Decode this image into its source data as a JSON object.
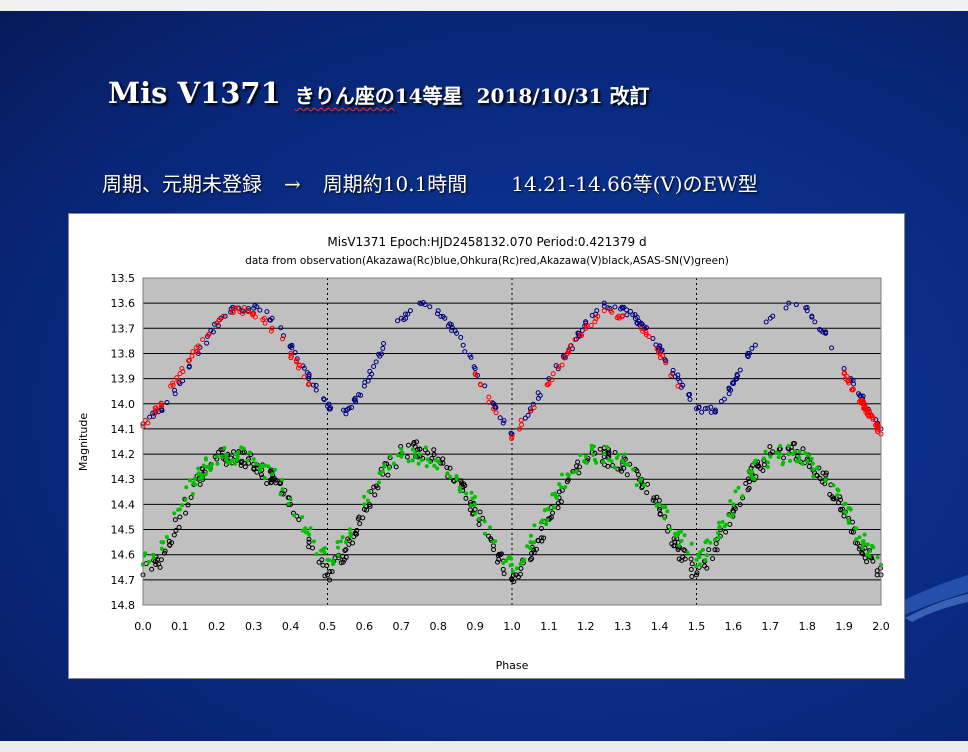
{
  "slide": {
    "title_main": "Mis V1371",
    "title_sub1": "きりん座の",
    "title_sub2": "14等星",
    "title_date": "2018/10/31 改訂",
    "subtitle_part1": "周期、元期未登録",
    "subtitle_arrow": "→",
    "subtitle_part2": "周期約10.1時間",
    "subtitle_part3": "14.21-14.66等(V)のEW型",
    "colors": {
      "background": "#0a2f8a",
      "text": "#ffffff"
    }
  },
  "chart_data": {
    "type": "scatter",
    "title": "MisV1371   Epoch:HJD2458132.070   Period:0.421379 d",
    "subtitle": "data from observation(Akazawa(Rc)blue,Ohkura(Rc)red,Akazawa(V)black,ASAS-SN(V)green)",
    "xlabel": "Phase",
    "ylabel": "Magnitude",
    "xlim": [
      0.0,
      2.0
    ],
    "ylim": [
      13.5,
      14.8
    ],
    "y_inverted": true,
    "grid": true,
    "vertical_dotted_lines": [
      0.5,
      1.0,
      1.5
    ],
    "x_ticks": [
      "0.0",
      "0.1",
      "0.2",
      "0.3",
      "0.4",
      "0.5",
      "0.6",
      "0.7",
      "0.8",
      "0.9",
      "1.0",
      "1.1",
      "1.2",
      "1.3",
      "1.4",
      "1.5",
      "1.6",
      "1.7",
      "1.8",
      "1.9",
      "2.0"
    ],
    "y_ticks": [
      "13.5",
      "13.6",
      "13.7",
      "13.8",
      "13.9",
      "14.0",
      "14.1",
      "14.2",
      "14.3",
      "14.4",
      "14.5",
      "14.6",
      "14.7",
      "14.8"
    ],
    "plot_background": "#c0c0c0",
    "series": [
      {
        "name": "Akazawa(Rc)",
        "color": "#00007f",
        "marker": "open-circle",
        "x": [
          0.0,
          0.05,
          0.1,
          0.15,
          0.2,
          0.25,
          0.3,
          0.35,
          0.4,
          0.45,
          0.5,
          0.55,
          0.6,
          0.65,
          0.7,
          0.75,
          0.8,
          0.85,
          0.9,
          0.95,
          1.0,
          1.05,
          1.1,
          1.15,
          1.2,
          1.25,
          1.3,
          1.35,
          1.4,
          1.45,
          1.5,
          1.55,
          1.6,
          1.65,
          1.7,
          1.75,
          1.8,
          1.85,
          1.9,
          1.95,
          2.0
        ],
        "y": [
          14.08,
          14.02,
          13.92,
          13.8,
          13.68,
          13.62,
          13.62,
          13.66,
          13.77,
          13.89,
          14.01,
          14.04,
          13.93,
          13.78,
          13.66,
          13.6,
          13.63,
          13.72,
          13.86,
          14.0,
          14.12,
          14.02,
          13.9,
          13.8,
          13.68,
          13.6,
          13.62,
          13.68,
          13.78,
          13.9,
          14.02,
          14.03,
          13.92,
          13.78,
          13.66,
          13.6,
          13.63,
          13.72,
          13.86,
          13.98,
          14.1
        ]
      },
      {
        "name": "Ohkura(Rc)",
        "color": "#ff0000",
        "marker": "open-circle",
        "x": [
          0.0,
          0.05,
          0.1,
          0.15,
          0.2,
          0.25,
          0.3,
          0.35,
          0.4,
          0.45,
          0.9,
          0.95,
          1.0,
          1.05,
          1.1,
          1.15,
          1.2,
          1.25,
          1.3,
          1.35,
          1.4,
          1.45,
          1.9,
          1.95,
          2.0
        ],
        "y": [
          14.09,
          14.0,
          13.88,
          13.77,
          13.68,
          13.62,
          13.64,
          13.7,
          13.8,
          13.92,
          13.88,
          14.02,
          14.13,
          14.03,
          13.92,
          13.8,
          13.7,
          13.63,
          13.65,
          13.7,
          13.8,
          13.93,
          13.88,
          14.0,
          14.12
        ]
      },
      {
        "name": "Akazawa(V)",
        "color": "#000000",
        "marker": "open-circle",
        "x": [
          0.0,
          0.05,
          0.1,
          0.15,
          0.2,
          0.25,
          0.3,
          0.35,
          0.4,
          0.45,
          0.5,
          0.55,
          0.6,
          0.65,
          0.7,
          0.75,
          0.8,
          0.85,
          0.9,
          0.95,
          1.0,
          1.05,
          1.1,
          1.15,
          1.2,
          1.25,
          1.3,
          1.35,
          1.4,
          1.45,
          1.5,
          1.55,
          1.6,
          1.65,
          1.7,
          1.75,
          1.8,
          1.85,
          1.9,
          1.95,
          2.0
        ],
        "y": [
          14.68,
          14.62,
          14.45,
          14.3,
          14.22,
          14.21,
          14.24,
          14.3,
          14.4,
          14.55,
          14.68,
          14.58,
          14.42,
          14.28,
          14.2,
          14.18,
          14.22,
          14.3,
          14.42,
          14.58,
          14.7,
          14.62,
          14.46,
          14.31,
          14.23,
          14.21,
          14.24,
          14.31,
          14.42,
          14.58,
          14.68,
          14.58,
          14.43,
          14.28,
          14.2,
          14.18,
          14.22,
          14.3,
          14.43,
          14.58,
          14.68
        ]
      },
      {
        "name": "ASAS-SN(V)",
        "color": "#00c000",
        "marker": "filled-circle",
        "x": [
          0.0,
          0.05,
          0.1,
          0.15,
          0.2,
          0.25,
          0.3,
          0.35,
          0.4,
          0.45,
          0.5,
          0.55,
          0.6,
          0.65,
          0.7,
          0.75,
          0.8,
          0.85,
          0.9,
          0.95,
          1.0,
          1.05,
          1.1,
          1.15,
          1.2,
          1.25,
          1.3,
          1.35,
          1.4,
          1.45,
          1.5,
          1.55,
          1.6,
          1.65,
          1.7,
          1.75,
          1.8,
          1.85,
          1.9,
          1.95,
          2.0
        ],
        "y": [
          14.64,
          14.55,
          14.42,
          14.28,
          14.21,
          14.2,
          14.22,
          14.28,
          14.38,
          14.52,
          14.62,
          14.55,
          14.4,
          14.27,
          14.21,
          14.2,
          14.23,
          14.3,
          14.4,
          14.55,
          14.64,
          14.55,
          14.42,
          14.28,
          14.21,
          14.2,
          14.23,
          14.3,
          14.4,
          14.52,
          14.62,
          14.54,
          14.4,
          14.27,
          14.21,
          14.2,
          14.23,
          14.3,
          14.4,
          14.55,
          14.64
        ]
      }
    ]
  }
}
